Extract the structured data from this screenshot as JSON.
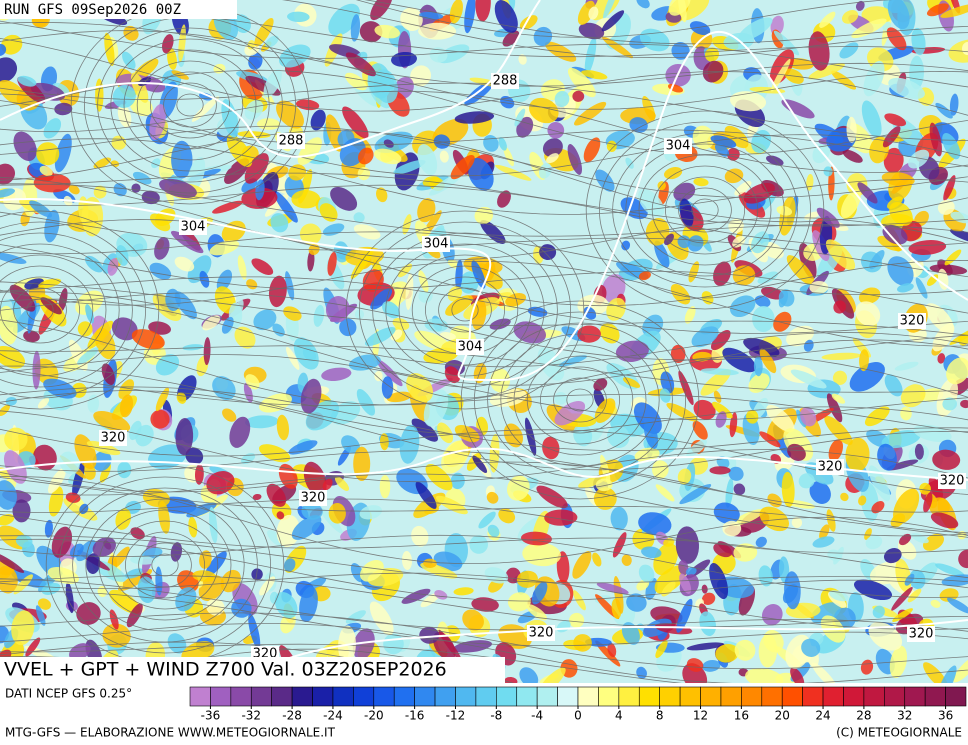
{
  "header": {
    "run": "RUN GFS 09Sep2026 00Z"
  },
  "title": "VVEL + GPT + WIND Z700 Val. 03Z20SEP2026",
  "source": "DATI NCEP GFS 0.25°",
  "contour_labels": [
    288,
    288,
    304,
    304,
    304,
    304,
    320,
    320,
    320,
    320,
    320,
    320,
    320,
    320
  ],
  "colorbar": {
    "range": [
      -38,
      38
    ],
    "ticks": [
      -36,
      -32,
      -28,
      -24,
      -20,
      -16,
      -12,
      -8,
      -4,
      0,
      4,
      8,
      12,
      16,
      20,
      24,
      28,
      32,
      36
    ],
    "colors": [
      "#c080d0",
      "#a060c0",
      "#8a4aa8",
      "#733a95",
      "#5a2a88",
      "#2a1a90",
      "#1a20a8",
      "#1030c0",
      "#1040d8",
      "#1858e8",
      "#2070f0",
      "#3088f0",
      "#40a0f0",
      "#50b8f0",
      "#60ccf0",
      "#70dcf0",
      "#90e8f0",
      "#b0f0f0",
      "#d8f8f8",
      "#ffffc0",
      "#ffff80",
      "#fff040",
      "#ffe000",
      "#ffd000",
      "#ffc000",
      "#ffb000",
      "#ffa000",
      "#ff8800",
      "#ff7000",
      "#ff5000",
      "#f03020",
      "#e02030",
      "#d01838",
      "#c01840",
      "#b01848",
      "#a01850",
      "#901850",
      "#801850"
    ]
  },
  "footer": {
    "left": "MTG-GFS — ELABORAZIONE WWW.METEOGIORNALE.IT",
    "right": "(C) METEOGIORNALE"
  }
}
